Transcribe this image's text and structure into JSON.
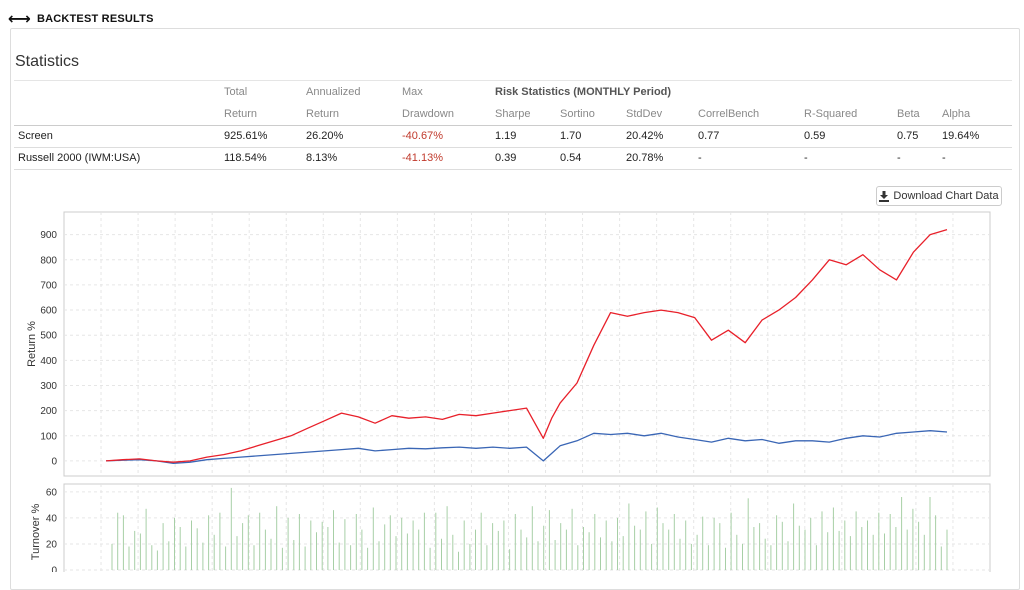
{
  "header": {
    "title": "BACKTEST RESULTS"
  },
  "statistics": {
    "title": "Statistics",
    "group_header": "Risk Statistics (MONTHLY Period)",
    "columns": [
      {
        "top": "Total",
        "bottom": "Return"
      },
      {
        "top": "Annualized",
        "bottom": "Return"
      },
      {
        "top": "Max",
        "bottom": "Drawdown"
      },
      {
        "top": "",
        "bottom": "Sharpe"
      },
      {
        "top": "",
        "bottom": "Sortino"
      },
      {
        "top": "",
        "bottom": "StdDev"
      },
      {
        "top": "",
        "bottom": "CorrelBench"
      },
      {
        "top": "",
        "bottom": "R-Squared"
      },
      {
        "top": "",
        "bottom": "Beta"
      },
      {
        "top": "",
        "bottom": "Alpha"
      }
    ],
    "rows": [
      {
        "name": "Screen",
        "values": [
          "925.61%",
          "26.20%",
          "-40.67%",
          "1.19",
          "1.70",
          "20.42%",
          "0.77",
          "0.59",
          "0.75",
          "19.64%"
        ]
      },
      {
        "name": "Russell 2000 (IWM:USA)",
        "values": [
          "118.54%",
          "8.13%",
          "-41.13%",
          "0.39",
          "0.54",
          "20.78%",
          "-",
          "-",
          "-",
          "-"
        ]
      }
    ]
  },
  "download_button": {
    "label": "Download Chart Data"
  },
  "colors": {
    "screen": "#e8202a",
    "benchmark": "#3a66b5",
    "turnover": "#a7cfa6",
    "negative": "#c0392b"
  },
  "icons": {
    "header_icon": "left-right-arrow-icon",
    "download_icon": "download-icon"
  },
  "chart_data": [
    {
      "type": "line",
      "ylabel": "Return %",
      "ylim": [
        -60,
        990
      ],
      "yticks": [
        0,
        100,
        200,
        300,
        400,
        500,
        600,
        700,
        800,
        900
      ],
      "grid": true,
      "x": [
        0,
        0.02,
        0.04,
        0.06,
        0.08,
        0.1,
        0.12,
        0.14,
        0.16,
        0.18,
        0.2,
        0.22,
        0.24,
        0.26,
        0.28,
        0.3,
        0.32,
        0.34,
        0.36,
        0.38,
        0.4,
        0.42,
        0.44,
        0.46,
        0.48,
        0.5,
        0.52,
        0.53,
        0.54,
        0.56,
        0.58,
        0.6,
        0.62,
        0.64,
        0.66,
        0.68,
        0.7,
        0.72,
        0.74,
        0.76,
        0.78,
        0.8,
        0.82,
        0.84,
        0.86,
        0.88,
        0.9,
        0.92,
        0.94,
        0.96,
        0.98,
        1.0
      ],
      "series": [
        {
          "values": [
            0,
            5,
            8,
            0,
            -5,
            0,
            15,
            25,
            40,
            60,
            80,
            100,
            130,
            160,
            190,
            175,
            150,
            180,
            170,
            175,
            165,
            185,
            180,
            190,
            200,
            210,
            90,
            170,
            230,
            310,
            460,
            590,
            575,
            590,
            600,
            590,
            570,
            480,
            520,
            470,
            560,
            600,
            650,
            720,
            800,
            780,
            820,
            760,
            720,
            830,
            900,
            920
          ]
        },
        {
          "values": [
            0,
            3,
            5,
            0,
            -10,
            -5,
            5,
            10,
            15,
            20,
            25,
            30,
            35,
            40,
            45,
            50,
            40,
            45,
            50,
            48,
            52,
            55,
            50,
            55,
            50,
            55,
            0,
            30,
            60,
            80,
            110,
            105,
            110,
            100,
            110,
            95,
            85,
            75,
            90,
            80,
            85,
            70,
            80,
            80,
            75,
            90,
            100,
            95,
            110,
            115,
            120,
            115
          ]
        }
      ]
    },
    {
      "type": "bar",
      "ylabel": "Turnover %",
      "ylim": [
        0,
        66
      ],
      "yticks": [
        0,
        20,
        40,
        60
      ],
      "grid": true,
      "values": [
        20,
        44,
        42,
        18,
        30,
        28,
        47,
        19,
        15,
        36,
        22,
        40,
        33,
        18,
        38,
        32,
        21,
        42,
        27,
        44,
        18,
        63,
        26,
        36,
        42,
        19,
        44,
        31,
        24,
        49,
        17,
        40,
        23,
        43,
        18,
        38,
        29,
        37,
        33,
        46,
        21,
        39,
        19,
        43,
        31,
        17,
        48,
        22,
        35,
        42,
        26,
        40,
        28,
        38,
        31,
        44,
        17,
        44,
        24,
        49,
        27,
        14,
        38,
        20,
        31,
        44,
        19,
        36,
        30,
        38,
        16,
        43,
        31,
        25,
        49,
        22,
        34,
        46,
        23,
        36,
        31,
        47,
        19,
        33,
        29,
        43,
        25,
        38,
        22,
        40,
        26,
        51,
        34,
        31,
        45,
        20,
        48,
        36,
        31,
        43,
        24,
        38,
        20,
        27,
        41,
        19,
        40,
        36,
        17,
        44,
        27,
        20,
        55,
        33,
        36,
        24,
        19,
        42,
        37,
        22,
        51,
        34,
        31,
        40,
        19,
        45,
        29,
        48,
        30,
        38,
        26,
        45,
        33,
        38,
        27,
        44,
        28,
        43,
        33,
        56,
        31,
        47,
        37,
        27,
        56,
        42,
        18,
        31
      ]
    }
  ]
}
